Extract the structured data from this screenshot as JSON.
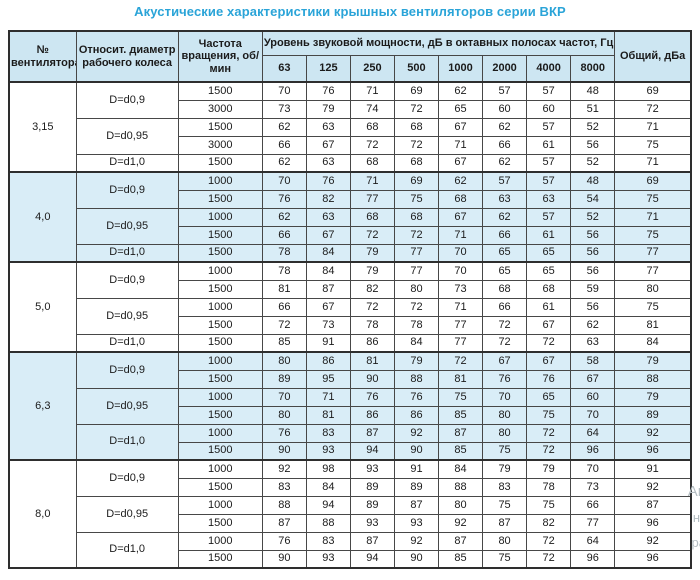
{
  "title": "Акустические характеристики крышных вентиляторов серии ВКР",
  "colors": {
    "title": "#2aa4d8",
    "header_bg": "#cde6f2",
    "band_bg": "#d9edf7",
    "border": "#474747"
  },
  "table": {
    "headers": {
      "fan_no": "№ вентилятора",
      "diameter": "Относит. диаметр рабочего колеса",
      "rpm": "Частота вращения, об/мин",
      "spl_group": "Уровень звуковой мощности, дБ в октавных полосах частот, Гц",
      "freq_bands": [
        "63",
        "125",
        "250",
        "500",
        "1000",
        "2000",
        "4000",
        "8000"
      ],
      "total": "Общий, дБа"
    },
    "sections": [
      {
        "fan": "3,15",
        "shaded": false,
        "groups": [
          {
            "diameter": "D=d0,9",
            "rows": [
              {
                "rpm": "1500",
                "levels": [
                  70,
                  76,
                  71,
                  69,
                  62,
                  57,
                  57,
                  48
                ],
                "total": 69
              },
              {
                "rpm": "3000",
                "levels": [
                  73,
                  79,
                  74,
                  72,
                  65,
                  60,
                  60,
                  51
                ],
                "total": 72
              }
            ]
          },
          {
            "diameter": "D=d0,95",
            "rows": [
              {
                "rpm": "1500",
                "levels": [
                  62,
                  63,
                  68,
                  68,
                  67,
                  62,
                  57,
                  52
                ],
                "total": 71
              },
              {
                "rpm": "3000",
                "levels": [
                  66,
                  67,
                  72,
                  72,
                  71,
                  66,
                  61,
                  56
                ],
                "total": 75
              }
            ]
          },
          {
            "diameter": "D=d1,0",
            "rows": [
              {
                "rpm": "1500",
                "levels": [
                  62,
                  63,
                  68,
                  68,
                  67,
                  62,
                  57,
                  52
                ],
                "total": 71
              }
            ]
          }
        ]
      },
      {
        "fan": "4,0",
        "shaded": true,
        "groups": [
          {
            "diameter": "D=d0,9",
            "rows": [
              {
                "rpm": "1000",
                "levels": [
                  70,
                  76,
                  71,
                  69,
                  62,
                  57,
                  57,
                  48
                ],
                "total": 69
              },
              {
                "rpm": "1500",
                "levels": [
                  76,
                  82,
                  77,
                  75,
                  68,
                  63,
                  63,
                  54
                ],
                "total": 75
              }
            ]
          },
          {
            "diameter": "D=d0,95",
            "rows": [
              {
                "rpm": "1000",
                "levels": [
                  62,
                  63,
                  68,
                  68,
                  67,
                  62,
                  57,
                  52
                ],
                "total": 71
              },
              {
                "rpm": "1500",
                "levels": [
                  66,
                  67,
                  72,
                  72,
                  71,
                  66,
                  61,
                  56
                ],
                "total": 75
              }
            ]
          },
          {
            "diameter": "D=d1,0",
            "rows": [
              {
                "rpm": "1500",
                "levels": [
                  78,
                  84,
                  79,
                  77,
                  70,
                  65,
                  65,
                  56
                ],
                "total": 77
              }
            ]
          }
        ]
      },
      {
        "fan": "5,0",
        "shaded": false,
        "groups": [
          {
            "diameter": "D=d0,9",
            "rows": [
              {
                "rpm": "1000",
                "levels": [
                  78,
                  84,
                  79,
                  77,
                  70,
                  65,
                  65,
                  56
                ],
                "total": 77
              },
              {
                "rpm": "1500",
                "levels": [
                  81,
                  87,
                  82,
                  80,
                  73,
                  68,
                  68,
                  59
                ],
                "total": 80
              }
            ]
          },
          {
            "diameter": "D=d0,95",
            "rows": [
              {
                "rpm": "1000",
                "levels": [
                  66,
                  67,
                  72,
                  72,
                  71,
                  66,
                  61,
                  56
                ],
                "total": 75
              },
              {
                "rpm": "1500",
                "levels": [
                  72,
                  73,
                  78,
                  78,
                  77,
                  72,
                  67,
                  62
                ],
                "total": 81
              }
            ]
          },
          {
            "diameter": "D=d1,0",
            "rows": [
              {
                "rpm": "1500",
                "levels": [
                  85,
                  91,
                  86,
                  84,
                  77,
                  72,
                  72,
                  63
                ],
                "total": 84
              }
            ]
          }
        ]
      },
      {
        "fan": "6,3",
        "shaded": true,
        "groups": [
          {
            "diameter": "D=d0,9",
            "rows": [
              {
                "rpm": "1000",
                "levels": [
                  80,
                  86,
                  81,
                  79,
                  72,
                  67,
                  67,
                  58
                ],
                "total": 79
              },
              {
                "rpm": "1500",
                "levels": [
                  89,
                  95,
                  90,
                  88,
                  81,
                  76,
                  76,
                  67
                ],
                "total": 88
              }
            ]
          },
          {
            "diameter": "D=d0,95",
            "rows": [
              {
                "rpm": "1000",
                "levels": [
                  70,
                  71,
                  76,
                  76,
                  75,
                  70,
                  65,
                  60
                ],
                "total": 79
              },
              {
                "rpm": "1500",
                "levels": [
                  80,
                  81,
                  86,
                  86,
                  85,
                  80,
                  75,
                  70
                ],
                "total": 89
              }
            ]
          },
          {
            "diameter": "D=d1,0",
            "rows": [
              {
                "rpm": "1000",
                "levels": [
                  76,
                  83,
                  87,
                  92,
                  87,
                  80,
                  72,
                  64
                ],
                "total": 92
              },
              {
                "rpm": "1500",
                "levels": [
                  90,
                  93,
                  94,
                  90,
                  85,
                  75,
                  72,
                  96
                ],
                "total": 96
              }
            ]
          }
        ]
      },
      {
        "fan": "8,0",
        "shaded": false,
        "groups": [
          {
            "diameter": "D=d0,9",
            "rows": [
              {
                "rpm": "1000",
                "levels": [
                  92,
                  98,
                  93,
                  91,
                  84,
                  79,
                  79,
                  70
                ],
                "total": 91
              },
              {
                "rpm": "1500",
                "levels": [
                  83,
                  84,
                  89,
                  89,
                  88,
                  83,
                  78,
                  73
                ],
                "total": 92
              }
            ]
          },
          {
            "diameter": "D=d0,95",
            "rows": [
              {
                "rpm": "1000",
                "levels": [
                  88,
                  94,
                  89,
                  87,
                  80,
                  75,
                  75,
                  66
                ],
                "total": 87
              },
              {
                "rpm": "1500",
                "levels": [
                  87,
                  88,
                  93,
                  93,
                  92,
                  87,
                  82,
                  77
                ],
                "total": 96
              }
            ]
          },
          {
            "diameter": "D=d1,0",
            "rows": [
              {
                "rpm": "1000",
                "levels": [
                  76,
                  83,
                  87,
                  92,
                  87,
                  80,
                  72,
                  64
                ],
                "total": 92
              },
              {
                "rpm": "1500",
                "levels": [
                  90,
                  93,
                  94,
                  90,
                  85,
                  75,
                  72,
                  96
                ],
                "total": 96
              }
            ]
          }
        ]
      }
    ]
  },
  "watermark": {
    "line1": "Ан",
    "line2": "нт",
    "line3": "ра"
  }
}
